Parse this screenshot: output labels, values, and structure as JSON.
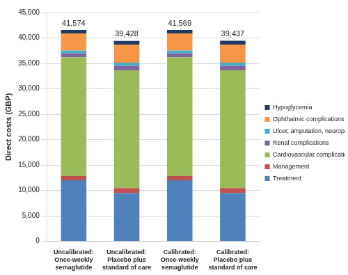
{
  "chart_data": {
    "type": "bar",
    "stacked": true,
    "y_label": "Direct costs (GBP)",
    "categories": [
      "Uncalibrated: Once-weekly semaglutide",
      "Uncalibrated: Placebo plus standard of care",
      "Calibrated: Once-weekly semaglutide",
      "Calibrated: Placebo plus standard of care"
    ],
    "series": [
      {
        "name": "Treatment",
        "color": "#4f81bd",
        "values": [
          12000,
          9500,
          12000,
          9500
        ]
      },
      {
        "name": "Management",
        "color": "#c0504d",
        "values": [
          850,
          950,
          850,
          950
        ]
      },
      {
        "name": "Cardiovascular complications",
        "color": "#9bbb59",
        "values": [
          23350,
          23200,
          23350,
          23200
        ]
      },
      {
        "name": "Renal complications",
        "color": "#8064a2",
        "values": [
          750,
          850,
          750,
          850
        ]
      },
      {
        "name": "Ulcer, amputation, neuropathy complications",
        "color": "#4bacc6",
        "values": [
          600,
          650,
          600,
          650
        ]
      },
      {
        "name": "Ophthalmic complications",
        "color": "#f79646",
        "values": [
          3350,
          3550,
          3350,
          3550
        ]
      },
      {
        "name": "Hypoglycemia",
        "color": "#1f3864",
        "values": [
          674,
          728,
          669,
          737
        ]
      }
    ],
    "totals": [
      41574,
      39428,
      41569,
      39437
    ],
    "total_labels": [
      "41,574",
      "39,428",
      "41,569",
      "39,437"
    ],
    "ylim": [
      0,
      45000
    ],
    "yticks": [
      0,
      {
        "value": 5000,
        "label": "5,000"
      },
      {
        "value": 10000,
        "label": "10,000"
      },
      {
        "value": 15000,
        "label": "15,000"
      },
      {
        "value": 20000,
        "label": "20,000"
      },
      {
        "value": 25000,
        "label": "25,000"
      },
      {
        "value": 30000,
        "label": "30,000"
      },
      {
        "value": 35000,
        "label": "35,000"
      },
      {
        "value": 40000,
        "label": "40,000"
      },
      {
        "value": 45000,
        "label": "45,000"
      }
    ],
    "grid": true,
    "legend": "right"
  }
}
